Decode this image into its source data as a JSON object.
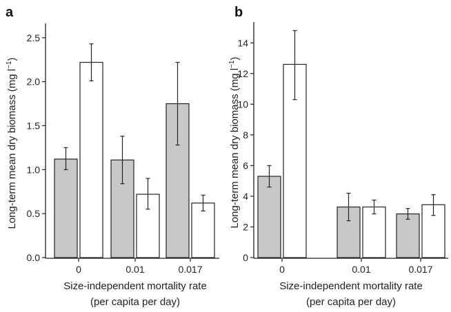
{
  "chart_data": [
    {
      "panel_label": "a",
      "type": "bar",
      "ylabel": "Long-term mean dry biomass (mg l",
      "ylabel_sup": "−1",
      "ylabel_end": ")",
      "xlabel_line1": "Size-independent mortality rate",
      "xlabel_line2": "(per capita per day)",
      "ylim": [
        0,
        2.6
      ],
      "yticks": [
        {
          "value": 0,
          "label": "0.0"
        },
        {
          "value": 0.5,
          "label": "0.5"
        },
        {
          "value": 1.0,
          "label": "1.0"
        },
        {
          "value": 1.5,
          "label": "1.5"
        },
        {
          "value": 2.0,
          "label": "2.0"
        },
        {
          "value": 2.5,
          "label": "2.5"
        }
      ],
      "categories": [
        "0",
        "0.01",
        "0.017"
      ],
      "series": [
        {
          "fill": "#c8c8c8",
          "values": [
            1.12,
            1.11,
            1.75
          ],
          "err_low": [
            1.0,
            0.84,
            1.28
          ],
          "err_high": [
            1.25,
            1.38,
            2.22
          ]
        },
        {
          "fill": "#ffffff",
          "values": [
            2.22,
            0.72,
            0.62
          ],
          "err_low": [
            2.01,
            0.55,
            0.53
          ],
          "err_high": [
            2.43,
            0.9,
            0.71
          ]
        }
      ]
    },
    {
      "panel_label": "b",
      "type": "bar",
      "ylabel": "Long-term mean dry biomass (mg l",
      "ylabel_sup": "−1",
      "ylabel_end": ")",
      "xlabel_line1": "Size-independent mortality rate",
      "xlabel_line2": "(per capita per day)",
      "ylim": [
        0,
        15
      ],
      "yticks": [
        {
          "value": 0,
          "label": "0"
        },
        {
          "value": 2,
          "label": "2"
        },
        {
          "value": 4,
          "label": "4"
        },
        {
          "value": 6,
          "label": "6"
        },
        {
          "value": 8,
          "label": "8"
        },
        {
          "value": 10,
          "label": "10"
        },
        {
          "value": 12,
          "label": "12"
        },
        {
          "value": 14,
          "label": "14"
        }
      ],
      "categories": [
        "0",
        "0.01",
        "0.017"
      ],
      "series": [
        {
          "fill": "#c8c8c8",
          "values": [
            5.3,
            3.3,
            2.85
          ],
          "err_low": [
            4.6,
            2.4,
            2.5
          ],
          "err_high": [
            6.0,
            4.2,
            3.2
          ]
        },
        {
          "fill": "#ffffff",
          "values": [
            12.6,
            3.3,
            3.45
          ],
          "err_low": [
            10.3,
            2.85,
            2.75
          ],
          "err_high": [
            14.8,
            3.75,
            4.1
          ]
        }
      ]
    }
  ]
}
